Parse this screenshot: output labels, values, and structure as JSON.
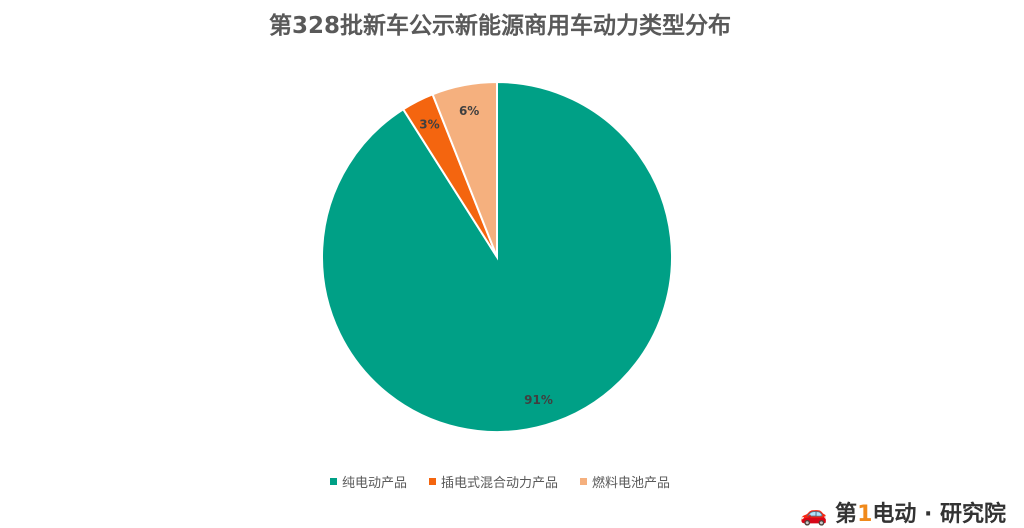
{
  "chart_data": {
    "type": "pie",
    "title": "第328批新车公示新能源商用车动力类型分布",
    "categories": [
      "纯电动产品",
      "插电式混合动力产品",
      "燃料电池产品"
    ],
    "values": [
      91,
      3,
      6
    ],
    "data_labels": [
      "91%",
      "3%",
      "6%"
    ],
    "colors": [
      "#00a086",
      "#f4650f",
      "#f5b07e"
    ],
    "legend_position": "bottom",
    "start_angle": "top, clockwise"
  },
  "watermark": "第1电动",
  "logo": "第1电动·研究院"
}
